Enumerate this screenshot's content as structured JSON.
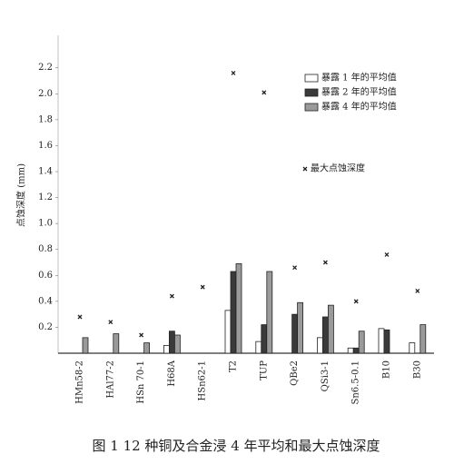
{
  "chart_data": {
    "type": "bar",
    "caption": "图 1   12 种铜及合金浸 4 年平均和最大点蚀深度",
    "y_label": "点蚀深度 (mm)",
    "categories": [
      "HMn58-2",
      "HAl77-2",
      "HSn 70-1",
      "H68A",
      "HSn62-1",
      "T2",
      "TUP",
      "QBe2",
      "QSi3-1",
      "Sn6.5-0.1",
      "B10",
      "B30"
    ],
    "series": [
      {
        "name": "暴露 1 年的平均值",
        "color": "#ffffff",
        "values": [
          null,
          null,
          null,
          0.06,
          null,
          0.33,
          0.09,
          null,
          0.12,
          0.04,
          0.19,
          0.08
        ]
      },
      {
        "name": "暴露 2 年的平均值",
        "color": "#3a3a3a",
        "values": [
          null,
          null,
          null,
          0.17,
          null,
          0.63,
          0.22,
          0.3,
          0.28,
          0.04,
          0.18,
          null
        ]
      },
      {
        "name": "暴露 4 年的平均值",
        "color": "#9a9a9a",
        "values": [
          0.12,
          0.15,
          0.08,
          0.14,
          null,
          0.69,
          0.63,
          0.39,
          0.37,
          0.17,
          null,
          0.22
        ]
      }
    ],
    "max_series": {
      "name": "最大点蚀深度",
      "type": "scatter",
      "color": "#222222",
      "values": [
        0.28,
        0.24,
        0.14,
        0.44,
        0.51,
        2.16,
        2.01,
        0.66,
        0.7,
        0.4,
        0.76,
        0.48
      ]
    },
    "ylim": [
      0,
      2.45
    ],
    "yticks": [
      0.2,
      0.4,
      0.6,
      0.8,
      {
        "value": 1,
        "label": "1.0"
      },
      1.2,
      1.4,
      1.6,
      1.8,
      {
        "value": 2,
        "label": "2.0"
      },
      2.2
    ],
    "legend": "upper right"
  }
}
